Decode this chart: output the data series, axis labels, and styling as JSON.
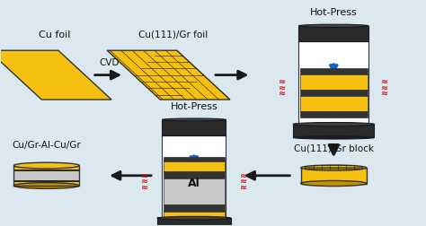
{
  "bg_color": "#dce8f0",
  "gold": "#F5C010",
  "gold_dark": "#C89000",
  "gold_mid": "#E8AA00",
  "black": "#1a1a1a",
  "dark_gray": "#333333",
  "mid_gray": "#888888",
  "silver": "#c8c8c8",
  "white": "#ffffff",
  "blue": "#1060cc",
  "red": "#cc1111",
  "text": "#111111",
  "cu_foil_label": "Cu foil",
  "cvd_label": "CVD",
  "gr_foil_label": "Cu(111)/Gr foil",
  "hot_press_label": "Hot-Press",
  "gr_block_label": "Cu(111)/Gr block",
  "final_label": "Cu/Gr-Al-Cu/Gr",
  "al_label": "Al"
}
